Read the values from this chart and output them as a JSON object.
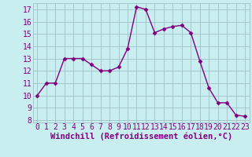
{
  "x": [
    0,
    1,
    2,
    3,
    4,
    5,
    6,
    7,
    8,
    9,
    10,
    11,
    12,
    13,
    14,
    15,
    16,
    17,
    18,
    19,
    20,
    21,
    22,
    23
  ],
  "y": [
    10,
    11,
    11,
    13,
    13,
    13,
    12.5,
    12,
    12,
    12.3,
    13.8,
    17.2,
    17.0,
    15.1,
    15.4,
    15.6,
    15.7,
    15.1,
    12.8,
    10.6,
    9.4,
    9.4,
    8.4,
    8.3
  ],
  "line_color": "#800080",
  "bg_color": "#c8eef0",
  "grid_color": "#a0c0c8",
  "xlabel": "Windchill (Refroidissement éolien,°C)",
  "xlim": [
    -0.5,
    23.5
  ],
  "ylim": [
    7.8,
    17.5
  ],
  "yticks": [
    8,
    9,
    10,
    11,
    12,
    13,
    14,
    15,
    16,
    17
  ],
  "xticks": [
    0,
    1,
    2,
    3,
    4,
    5,
    6,
    7,
    8,
    9,
    10,
    11,
    12,
    13,
    14,
    15,
    16,
    17,
    18,
    19,
    20,
    21,
    22,
    23
  ],
  "marker": "D",
  "marker_size": 2.5,
  "line_width": 1.0,
  "xlabel_fontsize": 7.5,
  "tick_fontsize": 7,
  "line_and_label_color": "#800080"
}
